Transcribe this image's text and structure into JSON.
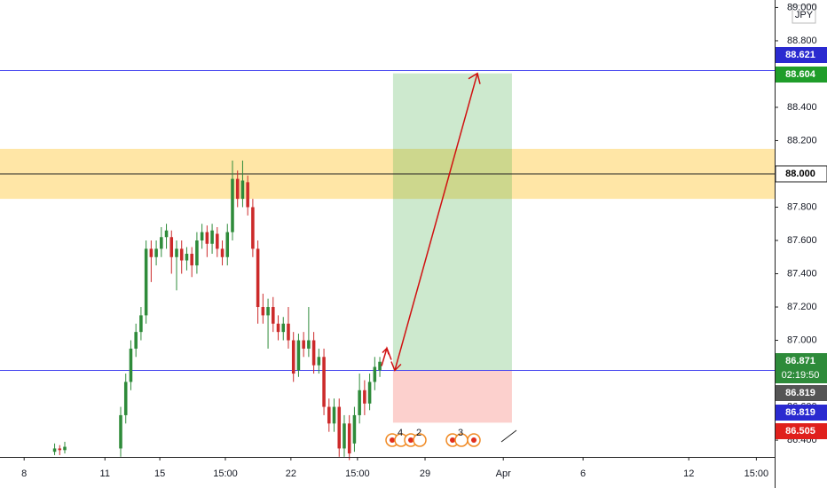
{
  "chart_data": {
    "type": "candlestick",
    "currency": "JPY",
    "up_color": "#2e8b3a",
    "down_color": "#cc2a2a",
    "x": [
      9,
      10,
      11,
      22,
      23,
      24,
      25,
      26,
      27,
      28,
      29,
      30,
      31,
      32,
      33,
      34,
      35,
      36,
      37,
      38,
      39,
      40,
      41,
      42,
      43,
      44,
      45,
      46,
      47,
      48,
      49,
      50,
      51,
      52,
      53,
      54,
      55,
      56,
      57,
      58,
      59,
      60,
      61,
      62,
      63,
      64,
      65,
      66,
      67,
      68,
      69,
      70,
      71,
      72,
      73
    ],
    "open": [
      86.33,
      86.35,
      86.34,
      86.35,
      86.55,
      86.75,
      86.95,
      87.05,
      87.15,
      87.55,
      87.5,
      87.55,
      87.62,
      87.62,
      87.5,
      87.55,
      87.48,
      87.52,
      87.45,
      87.6,
      87.65,
      87.58,
      87.64,
      87.55,
      87.5,
      87.65,
      87.97,
      87.85,
      87.95,
      87.8,
      87.55,
      87.2,
      87.15,
      87.2,
      87.1,
      87.05,
      87.1,
      87.0,
      86.82,
      87.0,
      86.95,
      87.0,
      86.85,
      86.9,
      86.6,
      86.5,
      86.6,
      86.35,
      86.5,
      86.38,
      86.55,
      86.7,
      86.62,
      86.75,
      86.82
    ],
    "high": [
      86.38,
      86.37,
      86.39,
      86.6,
      86.8,
      87.0,
      87.1,
      87.2,
      87.6,
      87.6,
      87.6,
      87.68,
      87.7,
      87.66,
      87.6,
      87.6,
      87.56,
      87.56,
      87.65,
      87.7,
      87.69,
      87.7,
      87.68,
      87.6,
      87.7,
      88.08,
      88.02,
      88.08,
      87.99,
      87.85,
      87.6,
      87.28,
      87.25,
      87.26,
      87.15,
      87.14,
      87.2,
      87.05,
      87.04,
      87.05,
      87.2,
      87.05,
      86.95,
      86.95,
      86.65,
      86.65,
      86.65,
      86.55,
      86.55,
      86.6,
      86.8,
      86.76,
      86.8,
      86.9,
      86.9
    ],
    "low": [
      86.31,
      86.31,
      86.32,
      86.3,
      86.5,
      86.7,
      86.9,
      87.0,
      87.1,
      87.35,
      87.45,
      87.5,
      87.55,
      87.4,
      87.3,
      87.4,
      87.42,
      87.38,
      87.4,
      87.55,
      87.5,
      87.52,
      87.5,
      87.45,
      87.45,
      87.6,
      87.8,
      87.8,
      87.75,
      87.5,
      87.1,
      87.1,
      86.95,
      87.05,
      87.0,
      87.0,
      86.95,
      86.75,
      86.78,
      86.9,
      86.9,
      86.8,
      86.8,
      86.55,
      86.45,
      86.45,
      86.3,
      86.3,
      86.28,
      86.33,
      86.5,
      86.55,
      86.58,
      86.7,
      86.78
    ],
    "close": [
      86.35,
      86.34,
      86.36,
      86.55,
      86.75,
      86.95,
      87.05,
      87.15,
      87.55,
      87.5,
      87.55,
      87.62,
      87.66,
      87.5,
      87.55,
      87.48,
      87.52,
      87.45,
      87.6,
      87.65,
      87.58,
      87.66,
      87.55,
      87.5,
      87.65,
      87.97,
      87.85,
      87.96,
      87.8,
      87.55,
      87.2,
      87.15,
      87.2,
      87.1,
      87.05,
      87.1,
      87.0,
      86.8,
      87.0,
      86.95,
      87.0,
      86.85,
      86.9,
      86.6,
      86.5,
      86.6,
      86.35,
      86.5,
      86.32,
      86.55,
      86.7,
      86.62,
      86.75,
      86.84,
      86.871
    ],
    "xlim": [
      -1.75,
      150.7
    ],
    "xticks": [
      {
        "value": 3,
        "label": "8"
      },
      {
        "value": 18.9,
        "label": "11"
      },
      {
        "value": 29.7,
        "label": "15"
      },
      {
        "value": 42.6,
        "label": "15:00"
      },
      {
        "value": 55.5,
        "label": "22"
      },
      {
        "value": 68.6,
        "label": "15:00"
      },
      {
        "value": 81.9,
        "label": "29"
      },
      {
        "value": 97.3,
        "label": "Apr"
      },
      {
        "value": 113,
        "label": "6"
      },
      {
        "value": 133.8,
        "label": "12"
      },
      {
        "value": 147.1,
        "label": "15:00"
      }
    ],
    "ylim": [
      86.299,
      89.045
    ],
    "yticks": [
      {
        "value": 86.4,
        "label": "86.400"
      },
      {
        "value": 86.6,
        "label": "86.600"
      },
      {
        "value": 86.8,
        "label": "86.800"
      },
      {
        "value": 87,
        "label": "87.000"
      },
      {
        "value": 87.2,
        "label": "87.200"
      },
      {
        "value": 87.4,
        "label": "87.400"
      },
      {
        "value": 87.6,
        "label": "87.600"
      },
      {
        "value": 87.8,
        "label": "87.800"
      },
      {
        "value": 88,
        "label": "88.000"
      },
      {
        "value": 88.2,
        "label": "88.200"
      },
      {
        "value": 88.4,
        "label": "88.400"
      },
      {
        "value": 88.8,
        "label": "88.800"
      },
      {
        "value": 89,
        "label": "89.000"
      }
    ],
    "zone": {
      "low": 87.85,
      "high": 88.15,
      "color": "#ffd66b"
    },
    "levels": [
      {
        "value": 88.621,
        "color": "#4a4af0"
      },
      {
        "value": 88.0,
        "color": "#222222"
      },
      {
        "value": 86.819,
        "color": "#4a4af0"
      }
    ],
    "position": {
      "entry": 86.819,
      "target": 88.604,
      "stop": 86.505,
      "x_start": 75.6,
      "x_end": 99
    },
    "price_labels": [
      {
        "value": 88.621,
        "label": "88.621",
        "color": "#2a2ad0"
      },
      {
        "value": 88.604,
        "label": "88.604",
        "color": "#1f9d2a"
      },
      {
        "value": 88.0,
        "label": "88.000",
        "color": "#ffffff"
      },
      {
        "value": 86.871,
        "label": "86.871",
        "color": "#2e8b3a",
        "countdown": "02:19:50"
      },
      {
        "value": 86.819,
        "label": "86.819",
        "color": "#555555"
      },
      {
        "value": 86.819,
        "label": "86.819",
        "color": "#2a2ad0"
      },
      {
        "value": 86.505,
        "label": "86.505",
        "color": "#e0201c"
      }
    ],
    "events": [
      "4",
      "2",
      "3"
    ]
  }
}
